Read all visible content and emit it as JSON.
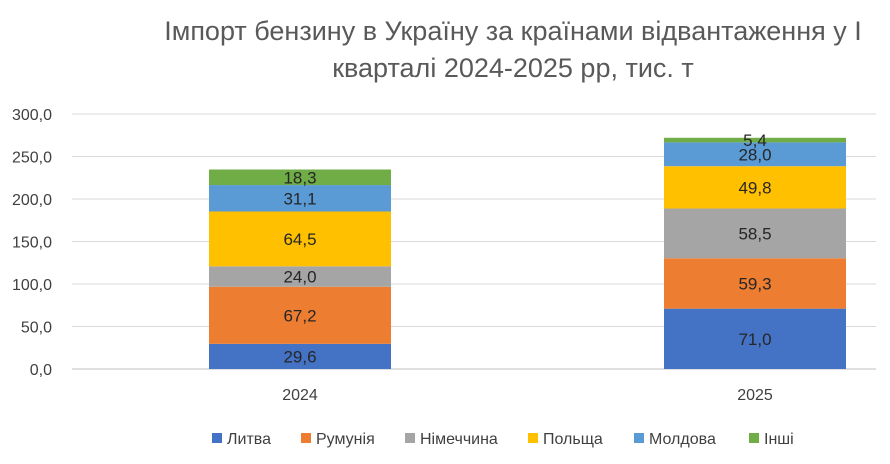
{
  "chart_data": {
    "type": "bar",
    "stacked": true,
    "title_lines": [
      "Імпорт бензину в Україну за країнами відвантаження у І",
      "кварталі 2024-2025 рр, тис. т"
    ],
    "categories": [
      "2024",
      "2025"
    ],
    "y_ticks": [
      "0,0",
      "50,0",
      "100,0",
      "150,0",
      "200,0",
      "250,0",
      "300,0"
    ],
    "ylim": [
      0,
      300
    ],
    "grid": true,
    "legend_position": "bottom",
    "series": [
      {
        "name": "Литва",
        "color": "#4472C4",
        "values": [
          29.6,
          71.0
        ],
        "labels": [
          "29,6",
          "71,0"
        ]
      },
      {
        "name": "Румунія",
        "color": "#ED7D31",
        "values": [
          67.2,
          59.3
        ],
        "labels": [
          "67,2",
          "59,3"
        ]
      },
      {
        "name": "Німеччина",
        "color": "#A5A5A5",
        "values": [
          24.0,
          58.5
        ],
        "labels": [
          "24,0",
          "58,5"
        ]
      },
      {
        "name": "Польща",
        "color": "#FFC000",
        "values": [
          64.5,
          49.8
        ],
        "labels": [
          "64,5",
          "49,8"
        ]
      },
      {
        "name": "Молдова",
        "color": "#5B9BD5",
        "values": [
          31.1,
          28.0
        ],
        "labels": [
          "31,1",
          "28,0"
        ]
      },
      {
        "name": "Інші",
        "color": "#70AD47",
        "values": [
          18.3,
          5.4
        ],
        "labels": [
          "18,3",
          "5,4"
        ]
      }
    ]
  }
}
